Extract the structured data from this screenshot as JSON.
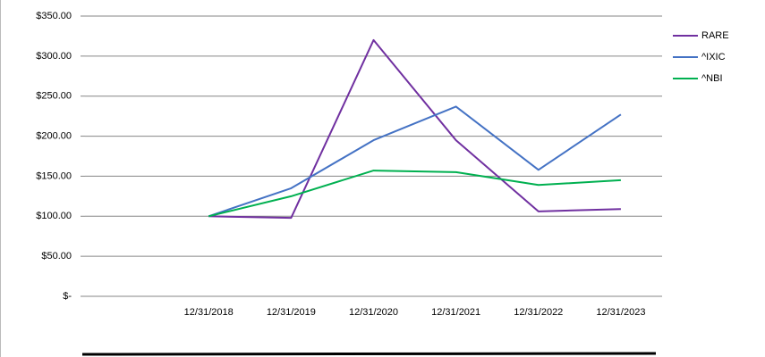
{
  "chart_data": {
    "type": "line",
    "categories": [
      null,
      "12/31/2018",
      "12/31/2019",
      "12/31/2020",
      "12/31/2021",
      "12/31/2022",
      "12/31/2023"
    ],
    "series": [
      {
        "name": "RARE",
        "color": "#7030a0",
        "values": [
          null,
          100,
          98,
          320,
          195,
          106,
          109
        ]
      },
      {
        "name": "^IXIC",
        "color": "#4472c4",
        "values": [
          null,
          100,
          135,
          195,
          237,
          158,
          227
        ]
      },
      {
        "name": "^NBI",
        "color": "#00b050",
        "values": [
          null,
          100,
          125,
          157,
          155,
          139,
          145
        ]
      }
    ],
    "ylim": [
      0,
      350
    ],
    "yticks": [
      {
        "value": 0,
        "label": "$-"
      },
      {
        "value": 50,
        "label": "$50.00"
      },
      {
        "value": 100,
        "label": "$100.00"
      },
      {
        "value": 150,
        "label": "$150.00"
      },
      {
        "value": 200,
        "label": "$200.00"
      },
      {
        "value": 250,
        "label": "$250.00"
      },
      {
        "value": 300,
        "label": "$300.00"
      },
      {
        "value": 350,
        "label": "$350.00"
      }
    ],
    "grid": true,
    "legend": "right"
  }
}
